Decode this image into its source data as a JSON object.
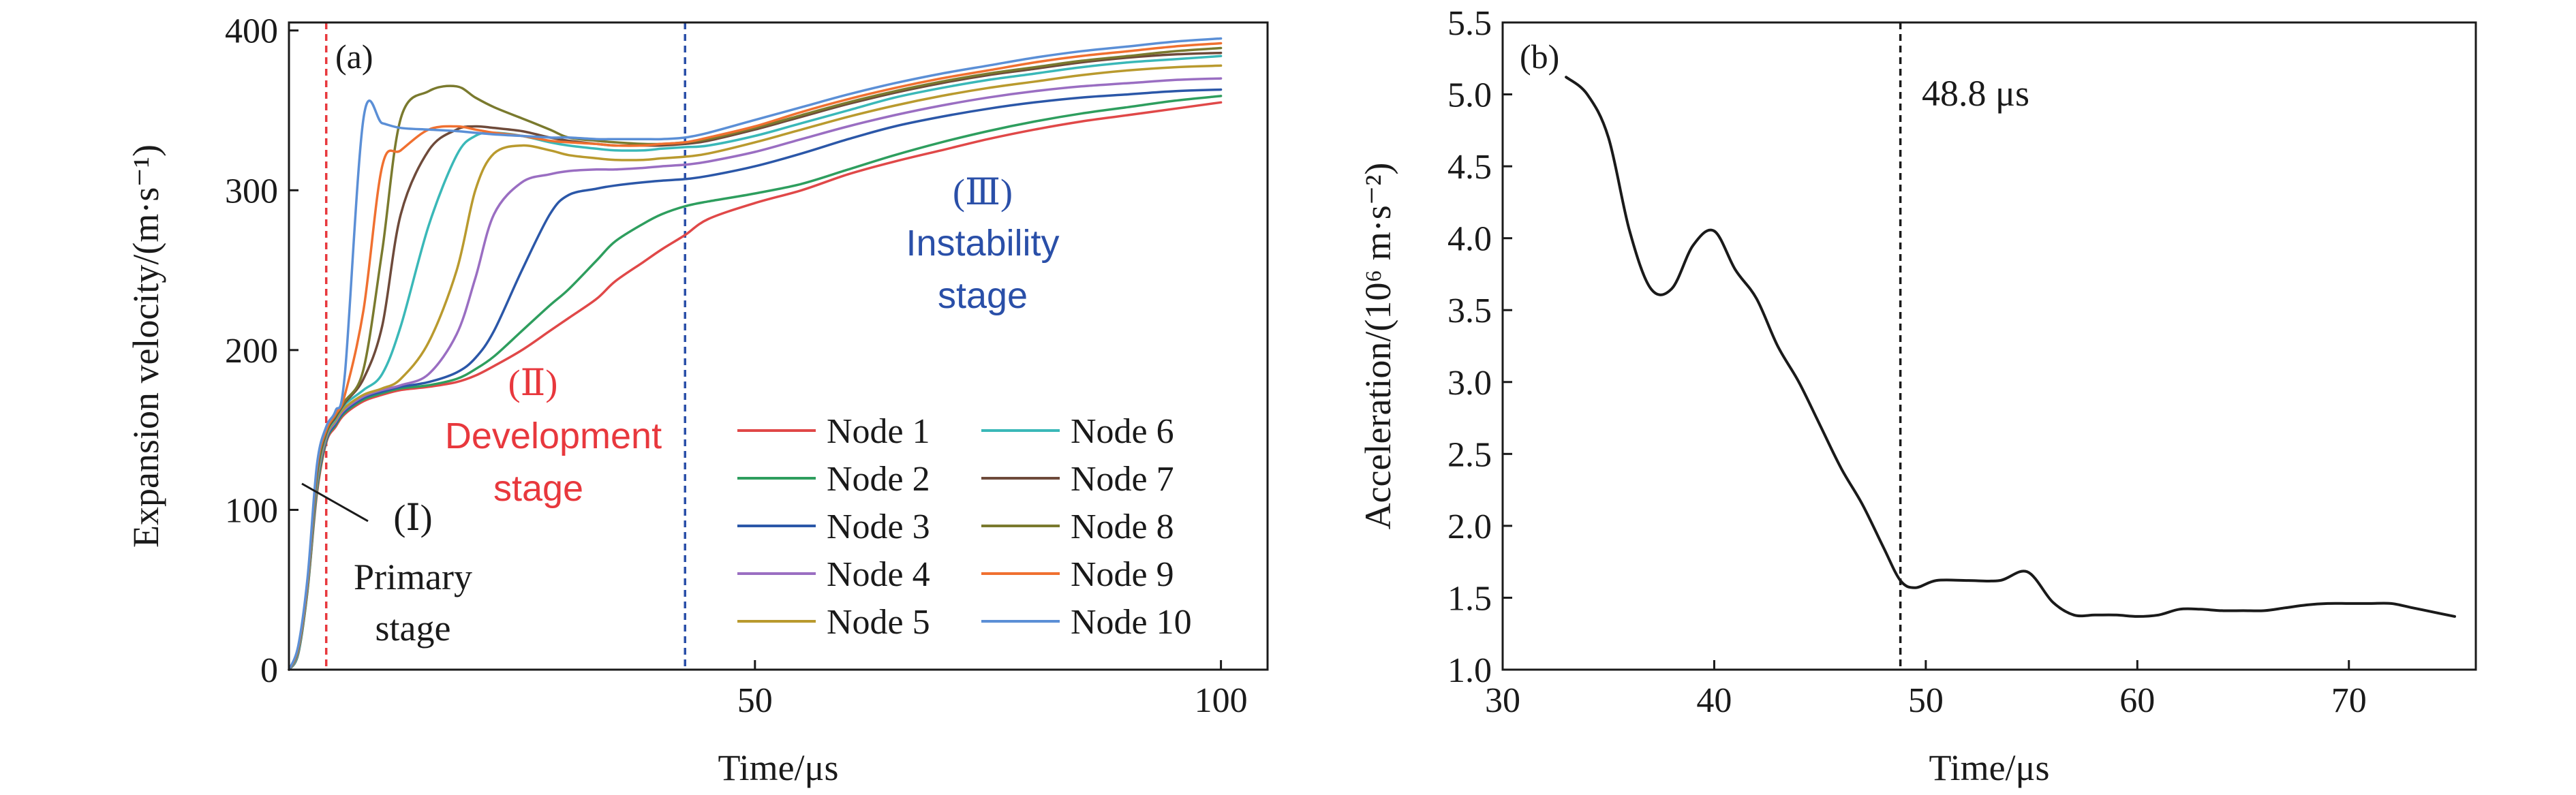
{
  "chart_data": [
    {
      "panel_label": "(a)",
      "type": "line",
      "xlabel": "Time/μs",
      "ylabel": "Expansion velocity/(m·s⁻¹)",
      "xlim": [
        0,
        105
      ],
      "ylim": [
        0,
        405
      ],
      "xticks": [
        50,
        100
      ],
      "yticks": [
        0,
        100,
        200,
        300,
        400
      ],
      "vlines": [
        {
          "x": 4,
          "color": "#e8383d",
          "style": "dashed"
        },
        {
          "x": 42.5,
          "color": "#2a4fa8",
          "style": "dashed"
        }
      ],
      "annotations": [
        {
          "lines": [
            "(Ⅰ)",
            "Primary",
            "stage"
          ],
          "color": "#1a1a1a"
        },
        {
          "lines": [
            "(Ⅱ)",
            "Development",
            "stage"
          ],
          "color": "#e8383d"
        },
        {
          "lines": [
            "(Ⅲ)",
            "Instability",
            "stage"
          ],
          "color": "#2a4fa8"
        }
      ],
      "legend": {
        "placement": "lower-right",
        "columns": 2
      },
      "series": [
        {
          "name": "Node 1",
          "color": "#e04848",
          "x": [
            0,
            1,
            2,
            3,
            4,
            5,
            6,
            8,
            10,
            12,
            15,
            18,
            20,
            22,
            25,
            28,
            30,
            33,
            35,
            38,
            40,
            42.5,
            45,
            50,
            55,
            60,
            65,
            70,
            75,
            80,
            85,
            90,
            95,
            100
          ],
          "y": [
            0,
            10,
            50,
            110,
            142,
            152,
            160,
            168,
            172,
            175,
            177,
            180,
            184,
            190,
            200,
            212,
            220,
            232,
            243,
            255,
            263,
            272,
            282,
            292,
            300,
            310,
            318,
            325,
            332,
            338,
            343,
            347,
            351,
            355
          ]
        },
        {
          "name": "Node 2",
          "color": "#2e9e5e",
          "x": [
            0,
            1,
            2,
            3,
            4,
            5,
            6,
            8,
            10,
            12,
            15,
            18,
            20,
            22,
            25,
            28,
            30,
            33,
            35,
            38,
            40,
            42.5,
            45,
            50,
            55,
            60,
            65,
            70,
            75,
            80,
            85,
            90,
            95,
            100
          ],
          "y": [
            0,
            10,
            50,
            112,
            143,
            153,
            161,
            169,
            173,
            176,
            178,
            182,
            188,
            196,
            212,
            228,
            238,
            256,
            268,
            279,
            285,
            290,
            293,
            298,
            304,
            313,
            322,
            330,
            337,
            343,
            348,
            352,
            356,
            359
          ]
        },
        {
          "name": "Node 3",
          "color": "#2b57a8",
          "x": [
            0,
            1,
            2,
            3,
            4,
            5,
            6,
            8,
            10,
            12,
            15,
            18,
            20,
            22,
            25,
            28,
            30,
            33,
            35,
            38,
            40,
            42.5,
            45,
            50,
            55,
            60,
            65,
            70,
            75,
            80,
            85,
            90,
            95,
            100
          ],
          "y": [
            0,
            11,
            52,
            115,
            144,
            154,
            162,
            170,
            174,
            177,
            180,
            186,
            195,
            212,
            250,
            285,
            297,
            301,
            303,
            305,
            306,
            307,
            309,
            315,
            323,
            332,
            340,
            346,
            351,
            355,
            358,
            360,
            362,
            363
          ]
        },
        {
          "name": "Node 4",
          "color": "#9a6ec2",
          "x": [
            0,
            1,
            2,
            3,
            4,
            5,
            6,
            8,
            10,
            12,
            15,
            18,
            20,
            22,
            25,
            28,
            30,
            33,
            35,
            38,
            40,
            42.5,
            45,
            50,
            55,
            60,
            65,
            70,
            75,
            80,
            85,
            90,
            95,
            100
          ],
          "y": [
            0,
            11,
            52,
            116,
            145,
            155,
            163,
            171,
            175,
            178,
            185,
            210,
            245,
            285,
            305,
            310,
            312,
            313,
            313,
            314,
            315,
            316,
            318,
            324,
            332,
            340,
            347,
            353,
            358,
            362,
            365,
            367,
            369,
            370
          ]
        },
        {
          "name": "Node 5",
          "color": "#b99a2e",
          "x": [
            0,
            1,
            2,
            3,
            4,
            5,
            6,
            8,
            10,
            12,
            15,
            18,
            20,
            22,
            25,
            28,
            30,
            33,
            35,
            38,
            40,
            42.5,
            45,
            50,
            55,
            60,
            65,
            70,
            75,
            80,
            85,
            90,
            95,
            100
          ],
          "y": [
            0,
            12,
            53,
            118,
            146,
            156,
            164,
            172,
            176,
            182,
            205,
            250,
            300,
            323,
            328,
            325,
            322,
            320,
            319,
            319,
            320,
            321,
            323,
            330,
            338,
            346,
            353,
            359,
            364,
            368,
            372,
            375,
            377,
            378
          ]
        },
        {
          "name": "Node 6",
          "color": "#3ab8b8",
          "x": [
            0,
            1,
            2,
            3,
            4,
            5,
            6,
            8,
            10,
            12,
            15,
            18,
            20,
            22,
            25,
            28,
            30,
            33,
            35,
            38,
            40,
            42.5,
            45,
            50,
            55,
            60,
            65,
            70,
            75,
            80,
            85,
            90,
            95,
            100
          ],
          "y": [
            0,
            12,
            54,
            120,
            147,
            157,
            166,
            175,
            185,
            215,
            278,
            322,
            334,
            336,
            334,
            330,
            328,
            326,
            325,
            325,
            326,
            327,
            328,
            334,
            342,
            350,
            358,
            364,
            369,
            373,
            377,
            380,
            382,
            384
          ]
        },
        {
          "name": "Node 7",
          "color": "#6e4a3a",
          "x": [
            0,
            1,
            2,
            3,
            4,
            5,
            6,
            8,
            10,
            12,
            15,
            18,
            20,
            22,
            25,
            28,
            30,
            33,
            35,
            38,
            40,
            42.5,
            45,
            50,
            55,
            60,
            65,
            70,
            75,
            80,
            85,
            90,
            95,
            100
          ],
          "y": [
            0,
            13,
            55,
            122,
            148,
            158,
            167,
            182,
            215,
            285,
            325,
            338,
            340,
            339,
            337,
            333,
            331,
            329,
            328,
            328,
            328,
            329,
            331,
            338,
            346,
            354,
            361,
            367,
            372,
            376,
            380,
            383,
            385,
            386
          ]
        },
        {
          "name": "Node 8",
          "color": "#7a7a2e",
          "x": [
            0,
            1,
            2,
            3,
            4,
            5,
            6,
            8,
            10,
            12,
            15,
            18,
            20,
            22,
            25,
            28,
            30,
            33,
            35,
            38,
            40,
            42.5,
            45,
            50,
            55,
            60,
            65,
            70,
            75,
            80,
            85,
            90,
            95,
            100
          ],
          "y": [
            0,
            13,
            55,
            124,
            149,
            159,
            168,
            188,
            262,
            345,
            362,
            365,
            358,
            352,
            345,
            338,
            333,
            331,
            330,
            329,
            329,
            330,
            332,
            339,
            347,
            355,
            362,
            368,
            373,
            377,
            381,
            384,
            387,
            389
          ]
        },
        {
          "name": "Node 9",
          "color": "#f07030",
          "x": [
            0,
            1,
            2,
            3,
            4,
            5,
            6,
            8,
            10,
            12,
            15,
            18,
            20,
            22,
            25,
            28,
            30,
            33,
            35,
            38,
            40,
            42.5,
            45,
            50,
            55,
            60,
            65,
            70,
            75,
            80,
            85,
            90,
            95,
            100
          ],
          "y": [
            0,
            14,
            56,
            126,
            150,
            160,
            172,
            225,
            315,
            325,
            338,
            340,
            338,
            336,
            334,
            331,
            330,
            329,
            328,
            328,
            329,
            330,
            333,
            340,
            349,
            357,
            364,
            370,
            375,
            380,
            384,
            387,
            390,
            392
          ]
        },
        {
          "name": "Node 10",
          "color": "#5b8fd6",
          "x": [
            0,
            1,
            2,
            3,
            4,
            5,
            6,
            8,
            10,
            12,
            15,
            18,
            20,
            22,
            25,
            28,
            30,
            33,
            35,
            38,
            40,
            42.5,
            45,
            50,
            55,
            60,
            65,
            70,
            75,
            80,
            85,
            90,
            95,
            100
          ],
          "y": [
            0,
            15,
            58,
            128,
            152,
            162,
            185,
            345,
            342,
            339,
            338,
            337,
            336,
            335,
            334,
            333,
            333,
            332,
            332,
            332,
            332,
            333,
            336,
            344,
            352,
            360,
            367,
            373,
            378,
            383,
            387,
            390,
            393,
            395
          ]
        }
      ]
    },
    {
      "panel_label": "(b)",
      "type": "line",
      "xlabel": "Time/μs",
      "ylabel": "Acceleration/(10⁶ m·s⁻²)",
      "xlim": [
        30,
        76
      ],
      "ylim": [
        1.0,
        5.5
      ],
      "xticks": [
        30,
        40,
        50,
        60,
        70
      ],
      "yticks": [
        1.0,
        1.5,
        2.0,
        2.5,
        3.0,
        3.5,
        4.0,
        4.5,
        5.0,
        5.5
      ],
      "vlines": [
        {
          "x": 48.8,
          "color": "#1a1a1a",
          "style": "dashed"
        }
      ],
      "annotation": "48.8 μs",
      "series": [
        {
          "name": "Acceleration",
          "color": "#1a1a1a",
          "x": [
            33,
            34,
            35,
            36,
            37,
            38,
            39,
            40,
            41,
            42,
            43,
            44,
            45,
            46,
            47,
            48,
            48.8,
            49.5,
            50.5,
            52,
            53.5,
            54.8,
            56,
            57,
            58,
            59,
            60,
            61,
            62,
            63,
            64,
            65,
            66,
            67,
            68,
            69,
            70,
            71,
            72,
            73,
            74,
            75
          ],
          "y": [
            5.12,
            5.0,
            4.7,
            4.05,
            3.65,
            3.65,
            3.95,
            4.05,
            3.78,
            3.58,
            3.25,
            3.0,
            2.7,
            2.4,
            2.15,
            1.85,
            1.62,
            1.57,
            1.62,
            1.62,
            1.62,
            1.68,
            1.47,
            1.38,
            1.38,
            1.38,
            1.37,
            1.38,
            1.42,
            1.42,
            1.41,
            1.41,
            1.41,
            1.43,
            1.45,
            1.46,
            1.46,
            1.46,
            1.46,
            1.43,
            1.4,
            1.37
          ]
        }
      ]
    }
  ]
}
